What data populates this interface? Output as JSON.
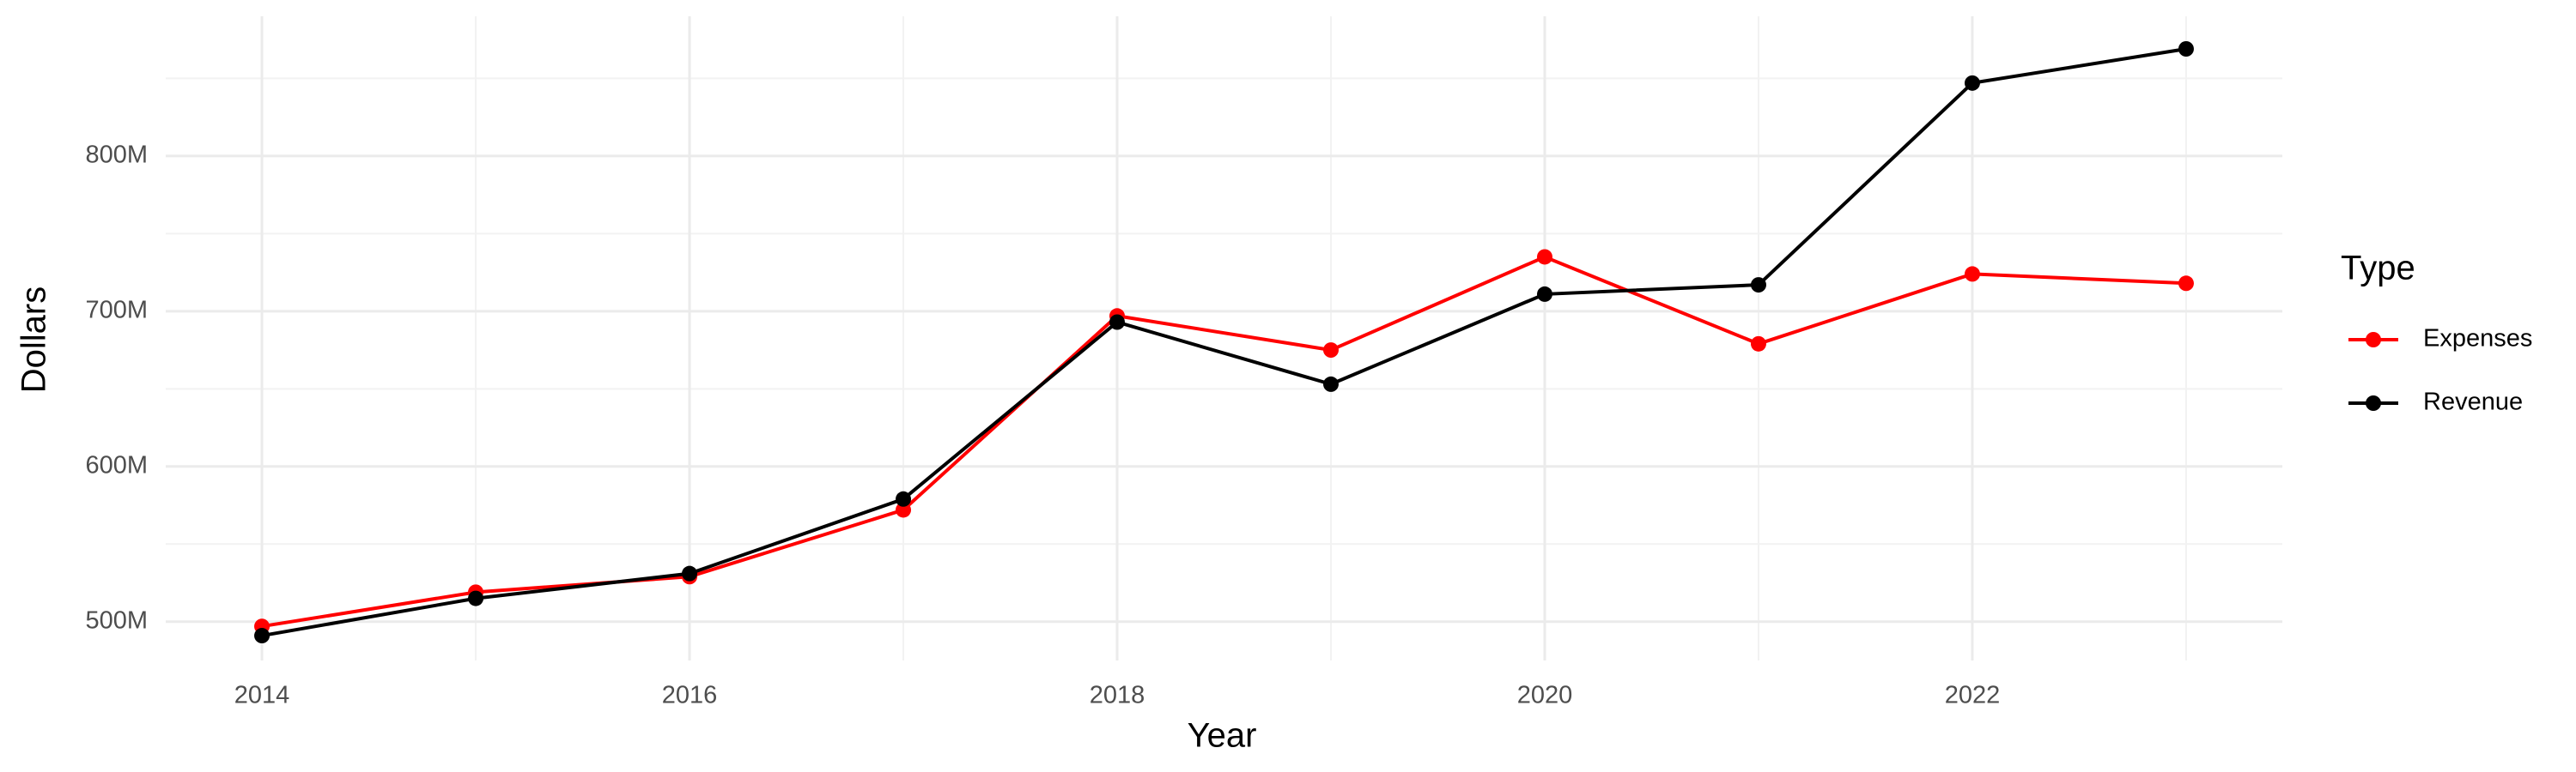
{
  "chart_data": {
    "type": "line",
    "x_label": "Year",
    "y_label": "Dollars",
    "legend_title": "Type",
    "legend_position": "right",
    "grid": true,
    "x": [
      2014,
      2015,
      2016,
      2017,
      2018,
      2019,
      2020,
      2021,
      2022,
      2023
    ],
    "series": [
      {
        "name": "Expenses",
        "color": "#ff0000",
        "values": [
          497000000,
          519000000,
          529000000,
          572000000,
          697000000,
          675000000,
          735000000,
          679000000,
          724000000,
          718000000
        ]
      },
      {
        "name": "Revenue",
        "color": "#000000",
        "values": [
          491000000,
          515000000,
          531000000,
          579000000,
          693000000,
          653000000,
          711000000,
          717000000,
          847000000,
          869000000
        ]
      }
    ],
    "xlim": [
      2013.55,
      2023.45
    ],
    "xticks": [
      2014,
      2016,
      2018,
      2020,
      2022
    ],
    "ylim": [
      475000000,
      890000000
    ],
    "yticks": [
      {
        "value": 500000000,
        "label": "500M"
      },
      {
        "value": 600000000,
        "label": "600M"
      },
      {
        "value": 700000000,
        "label": "700M"
      },
      {
        "value": 800000000,
        "label": "800M"
      }
    ]
  }
}
